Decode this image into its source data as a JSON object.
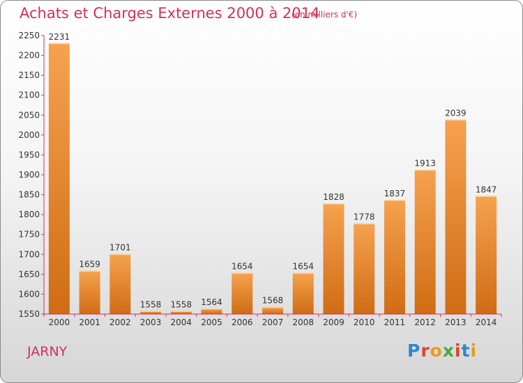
{
  "title": "Achats et Charges Externes 2000 à 2014",
  "subtitle": "(en milliers d'€)",
  "city": "JARNY",
  "logo": {
    "p": "P",
    "r": "r",
    "o": "o",
    "x": "x",
    "i": "i",
    "t": "t",
    "i2": "i"
  },
  "colors": {
    "bar_top": "#f6a24f",
    "bar_bottom": "#d06c14",
    "title": "#d0305a",
    "axis": "#d0305a"
  },
  "chart_data": {
    "type": "bar",
    "title": "Achats et Charges Externes 2000 à 2014",
    "subtitle": "(en milliers d'€)",
    "categories": [
      "2000",
      "2001",
      "2002",
      "2003",
      "2004",
      "2005",
      "2006",
      "2007",
      "2008",
      "2009",
      "2010",
      "2011",
      "2012",
      "2013",
      "2014"
    ],
    "values": [
      2231,
      1659,
      1701,
      1558,
      1558,
      1564,
      1654,
      1568,
      1654,
      1828,
      1778,
      1837,
      1913,
      2039,
      1847
    ],
    "ylim": [
      1550,
      2250
    ],
    "yticks": [
      1550,
      1600,
      1650,
      1700,
      1750,
      1800,
      1850,
      1900,
      1950,
      2000,
      2050,
      2100,
      2150,
      2200,
      2250
    ],
    "grid": false,
    "legend": "none"
  }
}
